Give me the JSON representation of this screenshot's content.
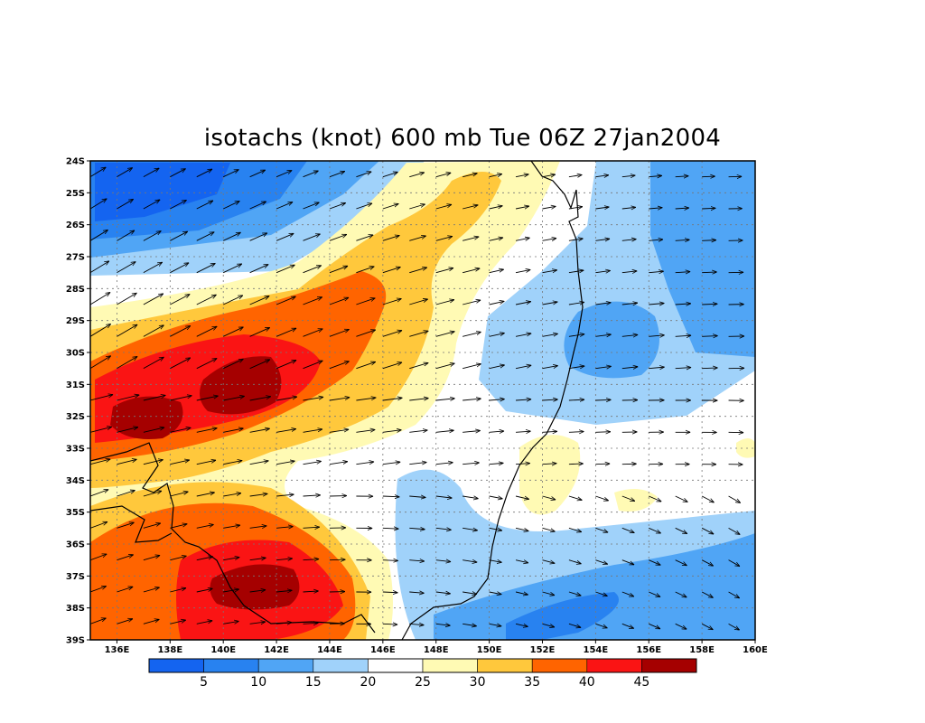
{
  "title": "isotachs (knot) 600 mb Tue 06Z 27jan2004",
  "map": {
    "lat_labels": [
      "24S",
      "25S",
      "26S",
      "27S",
      "28S",
      "29S",
      "30S",
      "31S",
      "32S",
      "33S",
      "34S",
      "35S",
      "36S",
      "37S",
      "38S",
      "39S"
    ],
    "lon_labels": [
      "136E",
      "138E",
      "140E",
      "142E",
      "144E",
      "146E",
      "148E",
      "150E",
      "152E",
      "154E",
      "156E",
      "158E",
      "160E"
    ],
    "lon_range": [
      135,
      160
    ],
    "lat_range": [
      -39,
      -24
    ],
    "grid": true,
    "vectors": "wind arrows",
    "colors": {
      "very_low": "#1464f0",
      "low": "#2882f0",
      "mid_low": "#50a5f5",
      "light": "#a0d2fa",
      "white": "#ffffff",
      "pale_yellow": "#fffab4",
      "yellow": "#ffc83c",
      "orange": "#ff6400",
      "red": "#fa1414",
      "dark_red": "#a50000"
    }
  },
  "legend": {
    "labels": [
      "5",
      "10",
      "15",
      "20",
      "25",
      "30",
      "35",
      "40",
      "45"
    ],
    "colors": [
      "#1464f0",
      "#2882f0",
      "#50a5f5",
      "#a0d2fa",
      "#ffffff",
      "#fffab4",
      "#ffc83c",
      "#ff6400",
      "#fa1414",
      "#a50000"
    ]
  }
}
